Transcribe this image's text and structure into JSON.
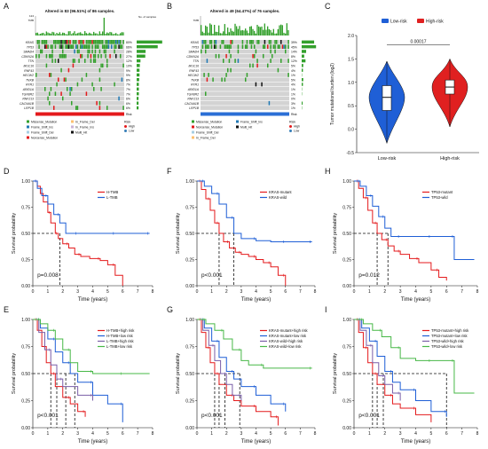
{
  "panel_letters": [
    "A",
    "B",
    "C",
    "D",
    "E",
    "F",
    "G",
    "H",
    "I"
  ],
  "oncoprints": [
    {
      "title": "Altered in 83 (96.51%) of 86 samples.",
      "tmb_axis_label": "TMB",
      "tmb_max_label": "124",
      "genes": [
        "KRAS",
        "TP53",
        "SMAD4",
        "CDKN2A",
        "TTN",
        "MUC16",
        "RNF43",
        "HECW2",
        "TNXB",
        "RYR1",
        "ARID1A",
        "TGFBR2",
        "RNF213",
        "CACNA1B",
        "LRP1B"
      ],
      "percents": [
        "80%",
        "66%",
        "28%",
        "27%",
        "12%",
        "10%",
        "9%",
        "9%",
        "8%",
        "7%",
        "7%",
        "7%",
        "6%",
        "6%",
        "6%"
      ],
      "side_axis_label": "No. of samples",
      "risk_bar_colors": [
        "#e41a1c"
      ],
      "risk_label": "Risk",
      "legend": {
        "mutations": [
          {
            "name": "Missense_Mutation",
            "color": "#33a02c"
          },
          {
            "name": "Frame_Shift_Ins",
            "color": "#1f78b4"
          },
          {
            "name": "Frame_Shift_Del",
            "color": "#a6cee3"
          },
          {
            "name": "Nonsense_Mutation",
            "color": "#e31a1c"
          },
          {
            "name": "In_Frame_Del",
            "color": "#fdbf6f"
          },
          {
            "name": "In_Frame_Ins",
            "color": "#cab2d6"
          },
          {
            "name": "Multi_Hit",
            "color": "#111111"
          }
        ],
        "risk_title": "Risk",
        "risk_items": [
          {
            "name": "High",
            "color": "#e41a1c"
          },
          {
            "name": "Low",
            "color": "#377eb8"
          }
        ]
      }
    },
    {
      "title": "Altered in 49 (64.47%) of 76 samples.",
      "tmb_axis_label": "TMB",
      "tmb_max_label": "",
      "genes": [
        "KRAS",
        "TP53",
        "SMAD4",
        "CDKN2A",
        "TTN",
        "MUC16",
        "RNF43",
        "HECW2",
        "TNXB",
        "RYR1",
        "ARID1A",
        "TGFBR2",
        "RNF213",
        "CACNA1B",
        "LRP1B"
      ],
      "percents": [
        "39%",
        "45%",
        "14%",
        "8%",
        "12%",
        "5%",
        "4%",
        "1%",
        "5%",
        "4%",
        "1%",
        "1%",
        "0%",
        "3%",
        "1%"
      ],
      "side_axis_label": "",
      "risk_bar_colors": [
        "#2b6fd6"
      ],
      "risk_label": "Risk",
      "legend": {
        "mutations": [
          {
            "name": "Missense_Mutation",
            "color": "#33a02c"
          },
          {
            "name": "Nonsense_Mutation",
            "color": "#e31a1c"
          },
          {
            "name": "Frame_Shift_Del",
            "color": "#a6cee3"
          },
          {
            "name": "In_Frame_Del",
            "color": "#fdbf6f"
          },
          {
            "name": "Frame_Shift_Ins",
            "color": "#1f78b4"
          },
          {
            "name": "Multi_Hit",
            "color": "#111111"
          }
        ],
        "risk_title": "Risk",
        "risk_items": [
          {
            "name": "High",
            "color": "#e41a1c"
          },
          {
            "name": "Low",
            "color": "#377eb8"
          }
        ]
      }
    }
  ],
  "chart_data": [
    {
      "panel": "C",
      "type": "violin",
      "legend": [
        {
          "name": "Low-risk",
          "color": "#1f5fd6"
        },
        {
          "name": "High-risk",
          "color": "#e02020"
        }
      ],
      "categories": [
        "Low-risk",
        "High-risk"
      ],
      "ylabel": "Tumor mutational burden (log2)",
      "ylim": [
        -0.5,
        2.0
      ],
      "yticks": [
        -0.5,
        0.0,
        0.5,
        1.0,
        1.5,
        2.0
      ],
      "ytick_labels": [
        "-0.5",
        "0.0",
        "0.5",
        "1.0",
        "1.5",
        "2.0"
      ],
      "pvalue": "0.00017",
      "series": [
        {
          "name": "Low-risk",
          "min": -0.3,
          "q1": 0.4,
          "median": 0.68,
          "q3": 0.93,
          "max": 1.45,
          "color": "#1f5fd6"
        },
        {
          "name": "High-risk",
          "min": 0.05,
          "q1": 0.75,
          "median": 0.9,
          "q3": 1.05,
          "max": 1.5,
          "color": "#e02020"
        }
      ]
    },
    {
      "panel": "D",
      "type": "line",
      "xlabel": "Time (years)",
      "ylabel": "Survival probability",
      "xlim": [
        0,
        8
      ],
      "ylim": [
        0,
        1
      ],
      "xticks": [
        0,
        1,
        2,
        3,
        4,
        5,
        6,
        7,
        8
      ],
      "yticks": [
        0.0,
        0.25,
        0.5,
        0.75,
        1.0
      ],
      "ytick_labels": [
        "0.00",
        "0.25",
        "0.50",
        "0.75",
        "1.00"
      ],
      "pvalue_text": "p=0.008",
      "median_lines": [
        1.8
      ],
      "series": [
        {
          "name": "H-TMB",
          "color": "#e41a1c",
          "x": [
            0,
            0.3,
            0.5,
            0.7,
            1.0,
            1.2,
            1.5,
            1.7,
            2.0,
            2.4,
            2.8,
            3.2,
            3.8,
            4.5,
            5.0,
            5.5,
            6.0
          ],
          "y": [
            1.0,
            0.95,
            0.88,
            0.8,
            0.7,
            0.6,
            0.5,
            0.45,
            0.4,
            0.36,
            0.3,
            0.28,
            0.26,
            0.24,
            0.2,
            0.1,
            0.0
          ]
        },
        {
          "name": "L-TMB",
          "color": "#1f5fd6",
          "x": [
            0,
            0.3,
            0.6,
            1.0,
            1.4,
            1.8,
            2.2,
            3.0,
            4.0,
            5.5,
            7.0,
            7.8
          ],
          "y": [
            1.0,
            0.93,
            0.86,
            0.78,
            0.68,
            0.6,
            0.5,
            0.5,
            0.5,
            0.5,
            0.5,
            0.5
          ]
        }
      ]
    },
    {
      "panel": "F",
      "type": "line",
      "xlabel": "Time (years)",
      "ylabel": "Survival probability",
      "xlim": [
        0,
        8
      ],
      "ylim": [
        0,
        1
      ],
      "xticks": [
        0,
        1,
        2,
        3,
        4,
        5,
        6,
        7,
        8
      ],
      "yticks": [
        0.0,
        0.25,
        0.5,
        0.75,
        1.0
      ],
      "ytick_labels": [
        "0.00",
        "0.25",
        "0.50",
        "0.75",
        "1.00"
      ],
      "pvalue_text": "p<0.001",
      "median_lines": [
        1.5,
        2.5
      ],
      "series": [
        {
          "name": "KRAS-mutant",
          "color": "#e41a1c",
          "x": [
            0,
            0.3,
            0.6,
            0.9,
            1.2,
            1.5,
            1.8,
            2.2,
            2.6,
            3.0,
            3.5,
            4.0,
            4.5,
            5.0,
            5.5,
            6.0
          ],
          "y": [
            1.0,
            0.92,
            0.83,
            0.72,
            0.6,
            0.5,
            0.42,
            0.36,
            0.32,
            0.3,
            0.28,
            0.25,
            0.22,
            0.18,
            0.1,
            0.0
          ]
        },
        {
          "name": "KRAS-wild",
          "color": "#1f5fd6",
          "x": [
            0,
            0.5,
            1.0,
            1.5,
            2.0,
            2.5,
            3.0,
            4.0,
            5.0,
            6.0,
            7.0,
            7.8
          ],
          "y": [
            1.0,
            0.95,
            0.88,
            0.78,
            0.65,
            0.5,
            0.45,
            0.43,
            0.42,
            0.42,
            0.42,
            0.42
          ]
        }
      ]
    },
    {
      "panel": "H",
      "type": "line",
      "xlabel": "Time (years)",
      "ylabel": "Survival probability",
      "xlim": [
        0,
        8
      ],
      "ylim": [
        0,
        1
      ],
      "xticks": [
        0,
        1,
        2,
        3,
        4,
        5,
        6,
        7,
        8
      ],
      "yticks": [
        0.0,
        0.25,
        0.5,
        0.75,
        1.0
      ],
      "ytick_labels": [
        "0.00",
        "0.25",
        "0.50",
        "0.75",
        "1.00"
      ],
      "pvalue_text": "p=0.012",
      "median_lines": [
        1.5,
        2.2
      ],
      "series": [
        {
          "name": "TP53-mutant",
          "color": "#e41a1c",
          "x": [
            0,
            0.3,
            0.6,
            0.9,
            1.2,
            1.5,
            1.8,
            2.2,
            2.6,
            3.0,
            3.6,
            4.2,
            5.0,
            5.5,
            6.0
          ],
          "y": [
            1.0,
            0.93,
            0.84,
            0.72,
            0.6,
            0.5,
            0.44,
            0.38,
            0.33,
            0.3,
            0.26,
            0.22,
            0.15,
            0.08,
            0.05
          ]
        },
        {
          "name": "TP53-wild",
          "color": "#1f5fd6",
          "x": [
            0,
            0.4,
            0.8,
            1.2,
            1.6,
            2.0,
            2.4,
            3.0,
            4.0,
            5.0,
            6.0,
            6.5,
            7.8
          ],
          "y": [
            1.0,
            0.95,
            0.86,
            0.76,
            0.66,
            0.55,
            0.47,
            0.47,
            0.47,
            0.47,
            0.47,
            0.25,
            0.25
          ]
        }
      ]
    },
    {
      "panel": "E",
      "type": "line",
      "xlabel": "Time (years)",
      "ylabel": "Survival probability",
      "xlim": [
        0,
        8
      ],
      "ylim": [
        0,
        1
      ],
      "xticks": [
        0,
        1,
        2,
        3,
        4,
        5,
        6,
        7,
        8
      ],
      "yticks": [
        0.0,
        0.25,
        0.5,
        0.75,
        1.0
      ],
      "ytick_labels": [
        "0.00",
        "0.25",
        "0.50",
        "0.75",
        "1.00"
      ],
      "pvalue_text": "p<0.001",
      "median_lines": [
        1.2,
        1.6,
        2.2,
        2.8
      ],
      "series": [
        {
          "name": "H-TMB+high risk",
          "color": "#e41a1c",
          "x": [
            0,
            0.3,
            0.6,
            0.9,
            1.2,
            1.5,
            2.0,
            2.5,
            3.0,
            3.5
          ],
          "y": [
            1.0,
            0.9,
            0.75,
            0.6,
            0.5,
            0.38,
            0.28,
            0.22,
            0.15,
            0.1
          ]
        },
        {
          "name": "H-TMB+low risk",
          "color": "#1f5fd6",
          "x": [
            0,
            0.5,
            1.0,
            1.5,
            2.0,
            2.5,
            3.0,
            4.0,
            5.0,
            6.0
          ],
          "y": [
            1.0,
            0.92,
            0.82,
            0.7,
            0.6,
            0.5,
            0.42,
            0.3,
            0.22,
            0.05
          ]
        },
        {
          "name": "L-TMB+high risk",
          "color": "#7a5fa8",
          "x": [
            0,
            0.4,
            0.8,
            1.2,
            1.6,
            2.0,
            3.0,
            4.0
          ],
          "y": [
            1.0,
            0.88,
            0.72,
            0.58,
            0.45,
            0.38,
            0.3,
            0.25
          ]
        },
        {
          "name": "L-TMB+low risk",
          "color": "#47b847",
          "x": [
            0,
            0.5,
            1.0,
            1.5,
            2.0,
            2.5,
            3.0,
            4.0,
            5.0,
            6.0,
            7.8
          ],
          "y": [
            1.0,
            0.96,
            0.9,
            0.82,
            0.72,
            0.6,
            0.52,
            0.5,
            0.5,
            0.5,
            0.5
          ]
        }
      ]
    },
    {
      "panel": "G",
      "type": "line",
      "xlabel": "Time (years)",
      "ylabel": "Survival probability",
      "xlim": [
        0,
        8
      ],
      "ylim": [
        0,
        1
      ],
      "xticks": [
        0,
        1,
        2,
        3,
        4,
        5,
        6,
        7,
        8
      ],
      "yticks": [
        0.0,
        0.25,
        0.5,
        0.75,
        1.0
      ],
      "ytick_labels": [
        "0.00",
        "0.25",
        "0.50",
        "0.75",
        "1.00"
      ],
      "pvalue_text": "p<0.001",
      "median_lines": [
        1.2,
        1.5,
        1.9,
        2.9
      ],
      "series": [
        {
          "name": "KRAS-mutant+high risk",
          "color": "#e41a1c",
          "x": [
            0,
            0.3,
            0.6,
            0.9,
            1.2,
            1.5,
            2.0,
            2.5,
            3.0,
            4.0,
            5.0,
            5.5
          ],
          "y": [
            1.0,
            0.88,
            0.74,
            0.6,
            0.5,
            0.4,
            0.3,
            0.25,
            0.2,
            0.15,
            0.1,
            0.02
          ]
        },
        {
          "name": "KRAS-mutant+low risk",
          "color": "#1f5fd6",
          "x": [
            0,
            0.5,
            1.0,
            1.5,
            2.0,
            2.5,
            3.0,
            4.0,
            5.0,
            6.0
          ],
          "y": [
            1.0,
            0.92,
            0.8,
            0.65,
            0.52,
            0.45,
            0.38,
            0.3,
            0.22,
            0.15
          ]
        },
        {
          "name": "KRAS-wild+high risk",
          "color": "#7a5fa8",
          "x": [
            0,
            0.4,
            0.8,
            1.2,
            1.6,
            2.0,
            2.4,
            3.0
          ],
          "y": [
            1.0,
            0.9,
            0.76,
            0.62,
            0.5,
            0.4,
            0.3,
            0.25
          ]
        },
        {
          "name": "KRAS-wild+low risk",
          "color": "#47b847",
          "x": [
            0,
            0.6,
            1.2,
            1.8,
            2.4,
            3.0,
            3.5,
            4.5,
            6.0,
            7.8
          ],
          "y": [
            1.0,
            0.96,
            0.9,
            0.82,
            0.72,
            0.62,
            0.58,
            0.55,
            0.55,
            0.55
          ]
        }
      ]
    },
    {
      "panel": "I",
      "type": "line",
      "xlabel": "Time (years)",
      "ylabel": "Survival probability",
      "xlim": [
        0,
        8
      ],
      "ylim": [
        0,
        1
      ],
      "xticks": [
        0,
        1,
        2,
        3,
        4,
        5,
        6,
        7,
        8
      ],
      "yticks": [
        0.0,
        0.25,
        0.5,
        0.75,
        1.0
      ],
      "ytick_labels": [
        "0.00",
        "0.25",
        "0.50",
        "0.75",
        "1.00"
      ],
      "pvalue_text": "p<0.001",
      "median_lines": [
        1.2,
        1.5,
        1.9,
        6.0
      ],
      "series": [
        {
          "name": "TP53-mutant+high risk",
          "color": "#e41a1c",
          "x": [
            0,
            0.3,
            0.6,
            0.9,
            1.2,
            1.5,
            2.0,
            2.5,
            3.0,
            4.0,
            5.0
          ],
          "y": [
            1.0,
            0.88,
            0.74,
            0.6,
            0.5,
            0.4,
            0.3,
            0.22,
            0.18,
            0.12,
            0.05
          ]
        },
        {
          "name": "TP53-mutant+low risk",
          "color": "#1f5fd6",
          "x": [
            0,
            0.5,
            1.0,
            1.5,
            2.0,
            2.5,
            3.0,
            4.0,
            5.0,
            6.0
          ],
          "y": [
            1.0,
            0.92,
            0.8,
            0.66,
            0.52,
            0.42,
            0.35,
            0.25,
            0.15,
            0.1
          ]
        },
        {
          "name": "TP53-wild+high risk",
          "color": "#7a5fa8",
          "x": [
            0,
            0.4,
            0.8,
            1.2,
            1.6,
            2.0,
            2.5,
            3.0
          ],
          "y": [
            1.0,
            0.9,
            0.76,
            0.6,
            0.48,
            0.4,
            0.32,
            0.25
          ]
        },
        {
          "name": "TP53-wild+low risk",
          "color": "#47b847",
          "x": [
            0,
            0.6,
            1.2,
            1.8,
            2.4,
            3.0,
            4.0,
            5.0,
            6.0,
            6.5,
            7.8
          ],
          "y": [
            1.0,
            0.96,
            0.9,
            0.84,
            0.74,
            0.64,
            0.62,
            0.62,
            0.62,
            0.32,
            0.32
          ]
        }
      ]
    }
  ]
}
